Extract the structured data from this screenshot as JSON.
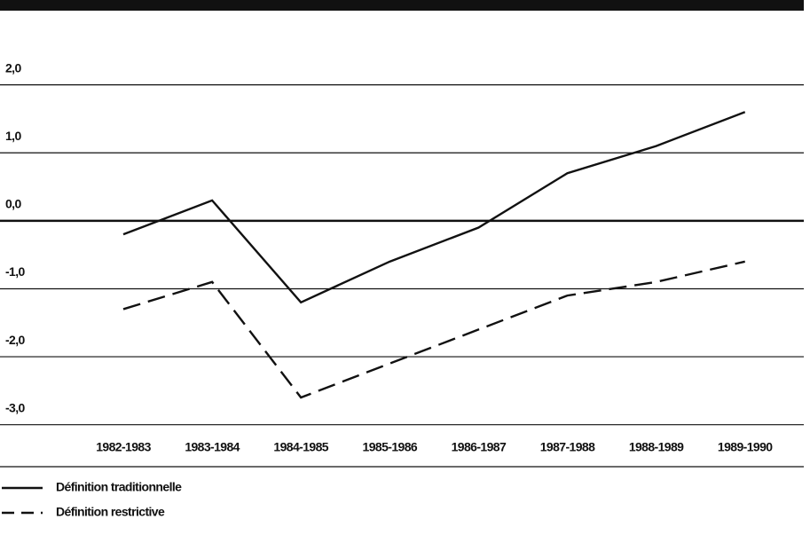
{
  "chart_data": {
    "type": "line",
    "categories": [
      "1982-1983",
      "1983-1984",
      "1984-1985",
      "1985-1986",
      "1986-1987",
      "1987-1988",
      "1988-1989",
      "1989-1990"
    ],
    "series": [
      {
        "name": "Définition traditionnelle",
        "color": "#111111",
        "dash": false,
        "values": [
          -0.2,
          0.3,
          -1.2,
          -0.6,
          -0.1,
          0.7,
          1.1,
          1.6
        ]
      },
      {
        "name": "Définition restrictive",
        "color": "#111111",
        "dash": true,
        "values": [
          -1.3,
          -0.9,
          -2.6,
          -2.1,
          -1.6,
          -1.1,
          -0.9,
          -0.6
        ]
      }
    ],
    "ylim": [
      -3.2,
      2.4
    ],
    "yticks": [
      {
        "value": 2,
        "label": "2,0"
      },
      {
        "value": 1,
        "label": "1,0"
      },
      {
        "value": 0,
        "label": "0,0"
      },
      {
        "value": -1,
        "label": "-1,0"
      },
      {
        "value": -2,
        "label": "-2,0"
      },
      {
        "value": -3,
        "label": "-3,0"
      }
    ],
    "grid": true
  }
}
